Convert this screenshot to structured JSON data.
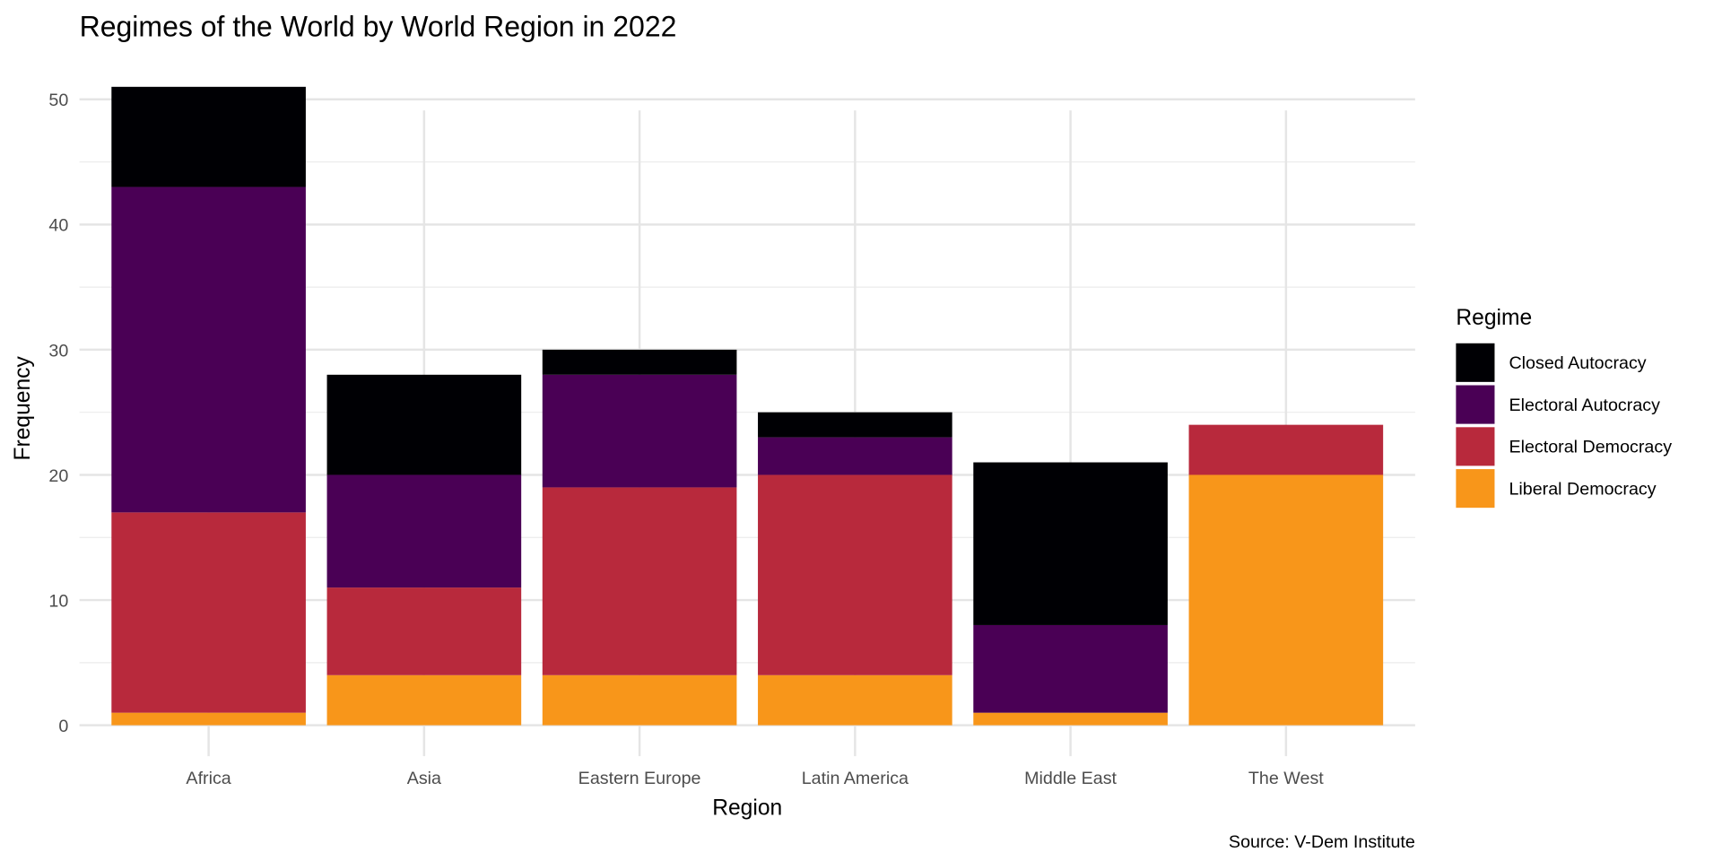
{
  "chart_data": {
    "type": "bar",
    "stacked": true,
    "title": "Regimes of the World by World Region in 2022",
    "xlabel": "Region",
    "ylabel": "Frequency",
    "caption": "Source: V-Dem Institute",
    "categories": [
      "Africa",
      "Asia",
      "Eastern Europe",
      "Latin America",
      "Middle East",
      "The West"
    ],
    "ylim": [
      0,
      52
    ],
    "yticks": [
      0,
      10,
      20,
      30,
      40,
      50
    ],
    "grid": true,
    "legend": {
      "title": "Regime",
      "position": "right"
    },
    "series": [
      {
        "name": "Liberal Democracy",
        "color": "#F8961A",
        "values": [
          1,
          4,
          4,
          4,
          1,
          20
        ]
      },
      {
        "name": "Electoral Democracy",
        "color": "#B8293C",
        "values": [
          16,
          7,
          15,
          16,
          0,
          4
        ]
      },
      {
        "name": "Electoral Autocracy",
        "color": "#4A0055",
        "values": [
          26,
          9,
          9,
          3,
          7,
          0
        ]
      },
      {
        "name": "Closed Autocracy",
        "color": "#000004",
        "values": [
          8,
          8,
          2,
          2,
          13,
          0
        ]
      }
    ],
    "legend_order": [
      "Closed Autocracy",
      "Electoral Autocracy",
      "Electoral Democracy",
      "Liberal Democracy"
    ]
  }
}
